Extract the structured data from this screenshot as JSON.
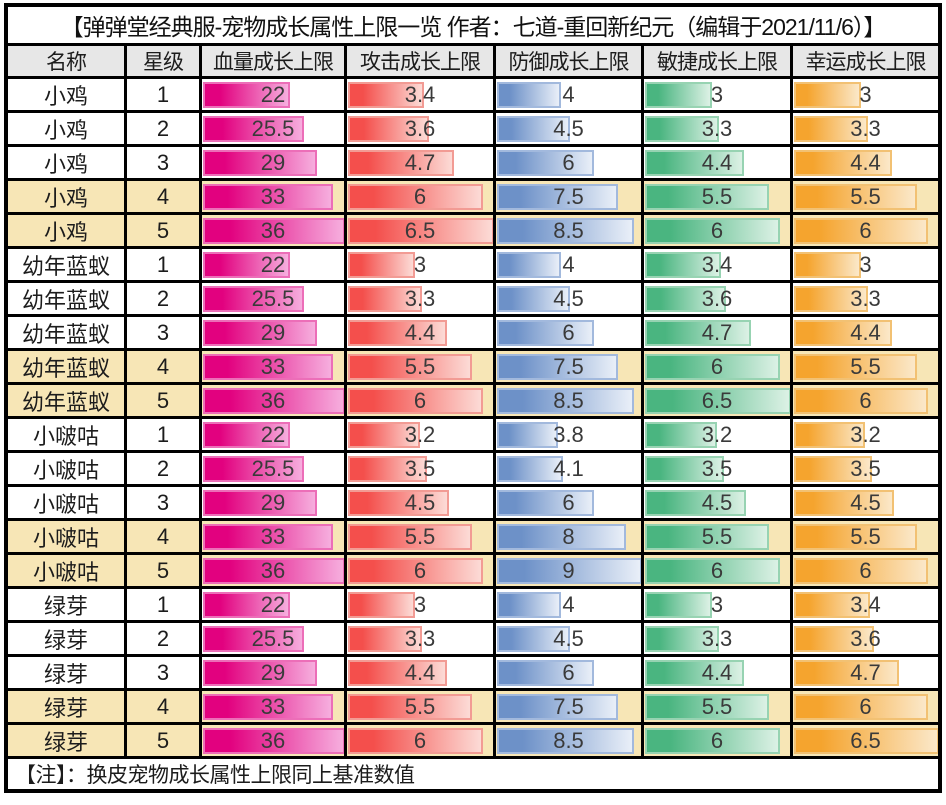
{
  "title": "【弹弹堂经典服-宠物成长属性上限一览 作者：七道-重回新纪元（编辑于2021/11/6）】",
  "note": "【注】：换皮宠物成长属性上限同上基准数值",
  "headers": [
    "名称",
    "星级",
    "血量成长上限",
    "攻击成长上限",
    "防御成长上限",
    "敏捷成长上限",
    "幸运成长上限"
  ],
  "column_keys": [
    "name",
    "star",
    "hp",
    "atk",
    "def",
    "agi",
    "luk"
  ],
  "colors": {
    "header_bg": "#e7e7e7",
    "highlight_row_bg": "#f7e6b6",
    "grid_line": "#000000",
    "value_text": "#3a3a3a",
    "bars": {
      "hp": {
        "from": "#e2017f",
        "to": "#f6aede",
        "border": "#ec6eb8"
      },
      "atk": {
        "from": "#f44f4c",
        "to": "#fcdbd6",
        "border": "#f29b94"
      },
      "def": {
        "from": "#6d91c8",
        "to": "#e9eff8",
        "border": "#a2b9dd"
      },
      "agi": {
        "from": "#4ab580",
        "to": "#dcf1e5",
        "border": "#97d3b2"
      },
      "luk": {
        "from": "#f5a42e",
        "to": "#fbe8c9",
        "border": "#f2c173"
      }
    }
  },
  "chart_data": {
    "type": "table",
    "title": "弹弹堂经典服-宠物成长属性上限一览",
    "columns": [
      "名称",
      "星级",
      "血量成长上限",
      "攻击成长上限",
      "防御成长上限",
      "敏捷成长上限",
      "幸运成长上限"
    ],
    "bar_scale_max": {
      "hp": 36,
      "atk": 6.5,
      "def": 9,
      "agi": 6.5,
      "luk": 6.5
    },
    "rows": [
      {
        "name": "小鸡",
        "star": 1,
        "hp": 22,
        "atk": 3.4,
        "def": 4,
        "agi": 3,
        "luk": 3
      },
      {
        "name": "小鸡",
        "star": 2,
        "hp": 25.5,
        "atk": 3.6,
        "def": 4.5,
        "agi": 3.3,
        "luk": 3.3
      },
      {
        "name": "小鸡",
        "star": 3,
        "hp": 29,
        "atk": 4.7,
        "def": 6,
        "agi": 4.4,
        "luk": 4.4
      },
      {
        "name": "小鸡",
        "star": 4,
        "hp": 33,
        "atk": 6,
        "def": 7.5,
        "agi": 5.5,
        "luk": 5.5
      },
      {
        "name": "小鸡",
        "star": 5,
        "hp": 36,
        "atk": 6.5,
        "def": 8.5,
        "agi": 6,
        "luk": 6
      },
      {
        "name": "幼年蓝蚁",
        "star": 1,
        "hp": 22,
        "atk": 3,
        "def": 4,
        "agi": 3.4,
        "luk": 3
      },
      {
        "name": "幼年蓝蚁",
        "star": 2,
        "hp": 25.5,
        "atk": 3.3,
        "def": 4.5,
        "agi": 3.6,
        "luk": 3.3
      },
      {
        "name": "幼年蓝蚁",
        "star": 3,
        "hp": 29,
        "atk": 4.4,
        "def": 6,
        "agi": 4.7,
        "luk": 4.4
      },
      {
        "name": "幼年蓝蚁",
        "star": 4,
        "hp": 33,
        "atk": 5.5,
        "def": 7.5,
        "agi": 6,
        "luk": 5.5
      },
      {
        "name": "幼年蓝蚁",
        "star": 5,
        "hp": 36,
        "atk": 6,
        "def": 8.5,
        "agi": 6.5,
        "luk": 6
      },
      {
        "name": "小啵咕",
        "star": 1,
        "hp": 22,
        "atk": 3.2,
        "def": 3.8,
        "agi": 3.2,
        "luk": 3.2
      },
      {
        "name": "小啵咕",
        "star": 2,
        "hp": 25.5,
        "atk": 3.5,
        "def": 4.1,
        "agi": 3.5,
        "luk": 3.5
      },
      {
        "name": "小啵咕",
        "star": 3,
        "hp": 29,
        "atk": 4.5,
        "def": 6,
        "agi": 4.5,
        "luk": 4.5
      },
      {
        "name": "小啵咕",
        "star": 4,
        "hp": 33,
        "atk": 5.5,
        "def": 8,
        "agi": 5.5,
        "luk": 5.5
      },
      {
        "name": "小啵咕",
        "star": 5,
        "hp": 36,
        "atk": 6,
        "def": 9,
        "agi": 6,
        "luk": 6
      },
      {
        "name": "绿芽",
        "star": 1,
        "hp": 22,
        "atk": 3,
        "def": 4,
        "agi": 3,
        "luk": 3.4
      },
      {
        "name": "绿芽",
        "star": 2,
        "hp": 25.5,
        "atk": 3.3,
        "def": 4.5,
        "agi": 3.3,
        "luk": 3.6
      },
      {
        "name": "绿芽",
        "star": 3,
        "hp": 29,
        "atk": 4.4,
        "def": 6,
        "agi": 4.4,
        "luk": 4.7
      },
      {
        "name": "绿芽",
        "star": 4,
        "hp": 33,
        "atk": 5.5,
        "def": 7.5,
        "agi": 5.5,
        "luk": 6
      },
      {
        "name": "绿芽",
        "star": 5,
        "hp": 36,
        "atk": 6,
        "def": 8.5,
        "agi": 6,
        "luk": 6.5
      }
    ]
  }
}
